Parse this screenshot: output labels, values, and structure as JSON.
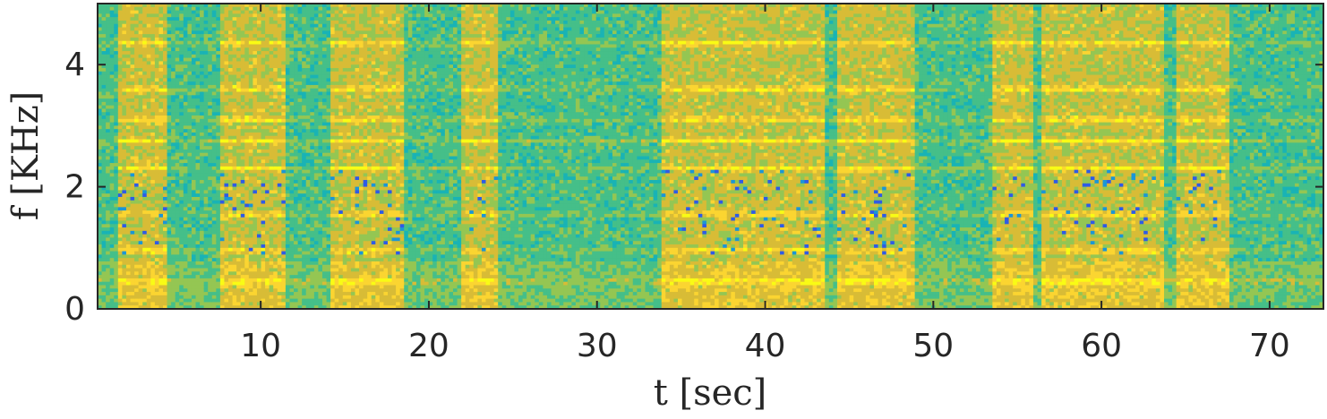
{
  "chart_data": {
    "type": "heatmap",
    "title": "",
    "xlabel": "t [sec]",
    "ylabel": "f [KHz]",
    "xlim": [
      0.3,
      73.2
    ],
    "ylim": [
      0,
      5
    ],
    "xticks": [
      10,
      20,
      30,
      40,
      50,
      60,
      70
    ],
    "yticks": [
      0,
      2,
      4
    ],
    "grid": false,
    "legend": "none",
    "colormap": [
      "#3e26a8",
      "#2e5be6",
      "#1b96d6",
      "#19b3b5",
      "#45bf89",
      "#94c653",
      "#d8bc36",
      "#fbd531",
      "#f9fb15"
    ],
    "loud_segments_sec": [
      [
        1.5,
        4.4
      ],
      [
        7.5,
        11.5
      ],
      [
        14.2,
        18.5
      ],
      [
        22.0,
        24.0
      ],
      [
        33.8,
        43.5
      ],
      [
        44.2,
        49.0
      ],
      [
        53.5,
        56.0
      ],
      [
        56.5,
        63.8
      ],
      [
        64.5,
        67.5
      ]
    ],
    "harmonic_bands_khz": [
      0.45,
      0.95,
      1.55,
      2.3,
      2.75,
      3.1,
      3.6,
      4.35
    ],
    "note": ""
  }
}
